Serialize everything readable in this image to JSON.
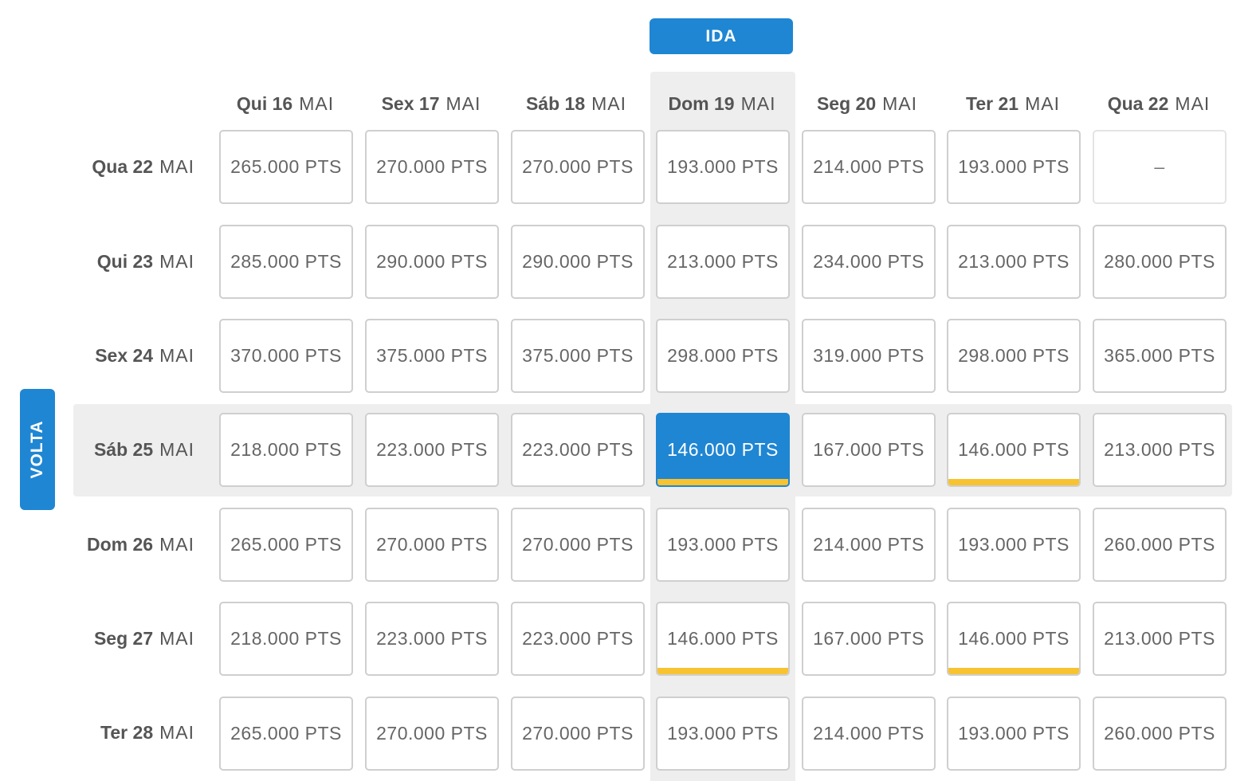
{
  "tabs": {
    "outbound": "IDA",
    "return": "VOLTA"
  },
  "outbound_dates": [
    {
      "day": "Qui 16",
      "month": "MAI"
    },
    {
      "day": "Sex 17",
      "month": "MAI"
    },
    {
      "day": "Sáb 18",
      "month": "MAI"
    },
    {
      "day": "Dom 19",
      "month": "MAI"
    },
    {
      "day": "Seg 20",
      "month": "MAI"
    },
    {
      "day": "Ter 21",
      "month": "MAI"
    },
    {
      "day": "Qua 22",
      "month": "MAI"
    }
  ],
  "return_dates": [
    {
      "day": "Qua 22",
      "month": "MAI"
    },
    {
      "day": "Qui 23",
      "month": "MAI"
    },
    {
      "day": "Sex 24",
      "month": "MAI"
    },
    {
      "day": "Sáb 25",
      "month": "MAI"
    },
    {
      "day": "Dom 26",
      "month": "MAI"
    },
    {
      "day": "Seg 27",
      "month": "MAI"
    },
    {
      "day": "Ter 28",
      "month": "MAI"
    }
  ],
  "selected": {
    "row": 3,
    "col": 3
  },
  "best_price_indicator_color": "#f7c331",
  "accent_color": "#1f86d3",
  "rows": [
    {
      "cells": [
        {
          "price": "265.000 PTS"
        },
        {
          "price": "270.000 PTS"
        },
        {
          "price": "270.000 PTS"
        },
        {
          "price": "193.000 PTS"
        },
        {
          "price": "214.000 PTS"
        },
        {
          "price": "193.000 PTS"
        },
        {
          "price": "–"
        }
      ]
    },
    {
      "cells": [
        {
          "price": "285.000 PTS"
        },
        {
          "price": "290.000 PTS"
        },
        {
          "price": "290.000 PTS"
        },
        {
          "price": "213.000 PTS"
        },
        {
          "price": "234.000 PTS"
        },
        {
          "price": "213.000 PTS"
        },
        {
          "price": "280.000 PTS"
        }
      ]
    },
    {
      "cells": [
        {
          "price": "370.000 PTS"
        },
        {
          "price": "375.000 PTS"
        },
        {
          "price": "375.000 PTS"
        },
        {
          "price": "298.000 PTS"
        },
        {
          "price": "319.000 PTS"
        },
        {
          "price": "298.000 PTS"
        },
        {
          "price": "365.000 PTS"
        }
      ]
    },
    {
      "cells": [
        {
          "price": "218.000 PTS"
        },
        {
          "price": "223.000 PTS"
        },
        {
          "price": "223.000 PTS"
        },
        {
          "price": "146.000 PTS",
          "best": true
        },
        {
          "price": "167.000 PTS"
        },
        {
          "price": "146.000 PTS",
          "best": true
        },
        {
          "price": "213.000 PTS"
        }
      ]
    },
    {
      "cells": [
        {
          "price": "265.000 PTS"
        },
        {
          "price": "270.000 PTS"
        },
        {
          "price": "270.000 PTS"
        },
        {
          "price": "193.000 PTS"
        },
        {
          "price": "214.000 PTS"
        },
        {
          "price": "193.000 PTS"
        },
        {
          "price": "260.000 PTS"
        }
      ]
    },
    {
      "cells": [
        {
          "price": "218.000 PTS"
        },
        {
          "price": "223.000 PTS"
        },
        {
          "price": "223.000 PTS"
        },
        {
          "price": "146.000 PTS",
          "best": true
        },
        {
          "price": "167.000 PTS"
        },
        {
          "price": "146.000 PTS",
          "best": true
        },
        {
          "price": "213.000 PTS"
        }
      ]
    },
    {
      "cells": [
        {
          "price": "265.000 PTS"
        },
        {
          "price": "270.000 PTS"
        },
        {
          "price": "270.000 PTS"
        },
        {
          "price": "193.000 PTS"
        },
        {
          "price": "214.000 PTS"
        },
        {
          "price": "193.000 PTS"
        },
        {
          "price": "260.000 PTS"
        }
      ]
    }
  ]
}
